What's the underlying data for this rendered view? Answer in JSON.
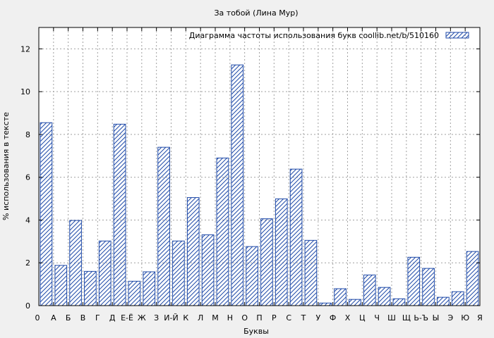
{
  "chart_data": {
    "type": "bar",
    "title": "За тобой (Лина Мур)",
    "xlabel": "Буквы",
    "ylabel": "% использования в тексте",
    "legend": {
      "label": "Диаграмма частоты использования букв  coollib.net/b/510160",
      "position": "top-right"
    },
    "ylim": [
      0,
      13
    ],
    "yticks": [
      0,
      2,
      4,
      6,
      8,
      10,
      12
    ],
    "grid": true,
    "x_axis_start_label": "0",
    "categories": [
      "А",
      "Б",
      "В",
      "Г",
      "Д",
      "Е-Ё",
      "Ж",
      "З",
      "И-Й",
      "К",
      "Л",
      "М",
      "Н",
      "О",
      "П",
      "Р",
      "С",
      "Т",
      "У",
      "Ф",
      "Х",
      "Ц",
      "Ч",
      "Ш",
      "Щ",
      "Ь-Ъ",
      "Ы",
      "Э",
      "Ю",
      "Я"
    ],
    "values": [
      8.55,
      1.88,
      3.98,
      1.6,
      3.02,
      8.48,
      1.14,
      1.58,
      7.4,
      3.02,
      5.05,
      3.31,
      6.9,
      11.25,
      2.76,
      4.06,
      4.99,
      6.38,
      3.05,
      0.12,
      0.79,
      0.29,
      1.43,
      0.85,
      0.32,
      2.26,
      1.74,
      0.39,
      0.65,
      2.53
    ],
    "colors": {
      "bar_stroke": "#1f4aa8",
      "hatch": "#1f4aa8",
      "background": "#f0f0f0",
      "plot_background": "#ffffff"
    }
  }
}
